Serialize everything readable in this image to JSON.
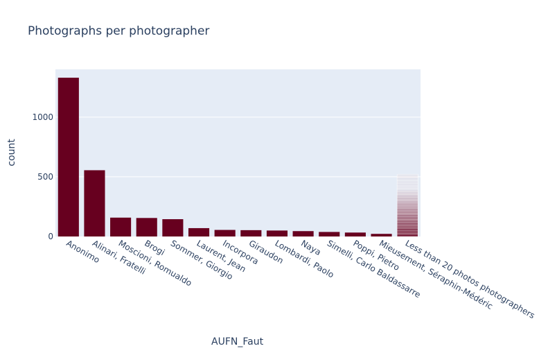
{
  "chart_data": {
    "type": "bar",
    "title": "Photographs per photographer",
    "xlabel": "AUFN_Faut",
    "ylabel": "count",
    "categories": [
      "Anonimo",
      "Alinari, Fratelli",
      "Moscioni, Romualdo",
      "Brogi",
      "Sommer, Giorgio",
      "Laurent, Jean",
      "Incorpora",
      "Giraudon",
      "Lombardi, Paolo",
      "Naya",
      "Simelli, Carlo Baldassarre",
      "Poppi, Pietro",
      "Mieusement, Séraphin-Médéric",
      "Less than 20 photos photographers"
    ],
    "values": [
      1330,
      555,
      158,
      155,
      145,
      70,
      55,
      53,
      50,
      45,
      38,
      33,
      22,
      520
    ],
    "stacked_segments_last_bar": 40,
    "yticks": [
      0,
      500,
      1000
    ],
    "ylim": [
      0,
      1400
    ],
    "grid": true,
    "legend": "none",
    "colors": {
      "bar": "#67001f",
      "plot_bg": "#e5ecf6",
      "grid": "#ffffff",
      "text": "#2a3f5f"
    }
  }
}
